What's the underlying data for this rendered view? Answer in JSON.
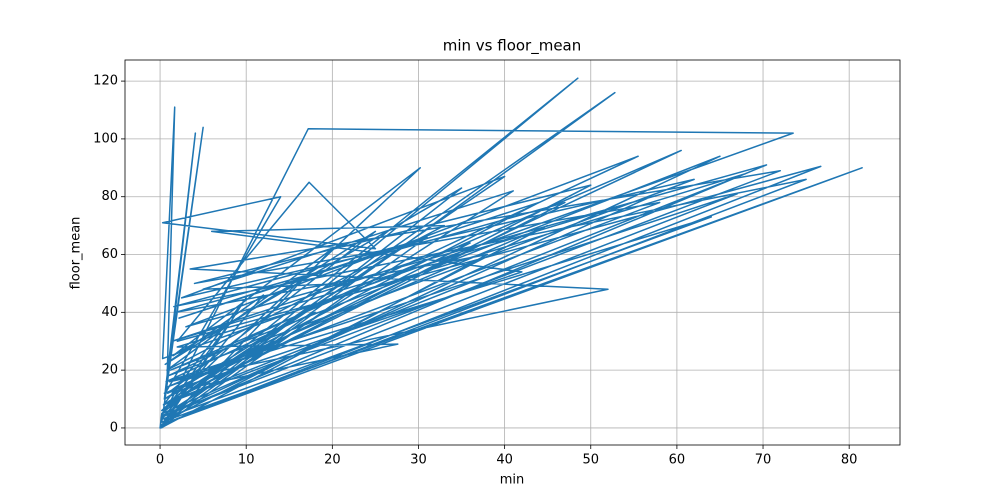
{
  "chart_data": {
    "type": "line",
    "title": "min vs floor_mean",
    "x_label": "min",
    "y_label": "floor_mean",
    "x": [
      0,
      0.2,
      48.5,
      0.5,
      52.8,
      1,
      17.2,
      73.5,
      0.3,
      1.7,
      0.8,
      4.1,
      0.5,
      5,
      0.2,
      81.5,
      0.1,
      76.7,
      2,
      17.3,
      25,
      0.3,
      14,
      0.6,
      60.5,
      1.2,
      65,
      0.4,
      70.4,
      3,
      55.5,
      0.9,
      62,
      2.5,
      40,
      0.2,
      30.2,
      1.5,
      35,
      0.3,
      45,
      0.7,
      58,
      4,
      50,
      1,
      68,
      2,
      27.6,
      0.5,
      42,
      6,
      33,
      0.8,
      20,
      0.1,
      38,
      1.8,
      47,
      0.4,
      72,
      3.5,
      52,
      1.1,
      64,
      0.2,
      12,
      0.6,
      25,
      0.9,
      44,
      2.2,
      31,
      0,
      8,
      0.3,
      57,
      1.4,
      36,
      0.5,
      22,
      5,
      41,
      0.2,
      67,
      0.7,
      18,
      0.1,
      75,
      1.6,
      29,
      0.4,
      10,
      0.2
    ],
    "values": [
      0,
      5,
      121,
      3,
      116,
      8,
      103.5,
      102,
      24,
      111,
      15,
      102,
      10,
      104,
      2,
      90,
      1,
      90.5,
      30,
      85,
      62,
      71,
      80,
      12,
      96,
      20,
      94,
      4,
      91,
      35,
      94,
      18,
      86,
      45,
      87,
      6,
      90,
      25,
      83,
      2,
      70,
      14,
      78,
      50,
      84,
      9,
      88,
      28,
      29,
      12,
      54,
      68,
      70,
      20,
      62,
      0,
      60,
      40,
      78,
      8,
      89,
      55,
      48,
      16,
      73,
      3,
      46,
      22,
      68,
      12,
      78,
      38,
      66,
      0,
      36,
      5,
      80,
      30,
      64,
      10,
      50,
      48,
      82,
      4,
      81,
      16,
      40,
      1,
      86,
      42,
      64,
      8,
      45,
      0
    ],
    "color": "#1f77b4",
    "xlim": [
      -4.07,
      85.9
    ],
    "ylim": [
      -5.9,
      127.3
    ],
    "xticks": [
      0,
      10,
      20,
      30,
      40,
      50,
      60,
      70,
      80
    ],
    "yticks": [
      0,
      20,
      40,
      60,
      80,
      100,
      120
    ],
    "grid": true
  }
}
